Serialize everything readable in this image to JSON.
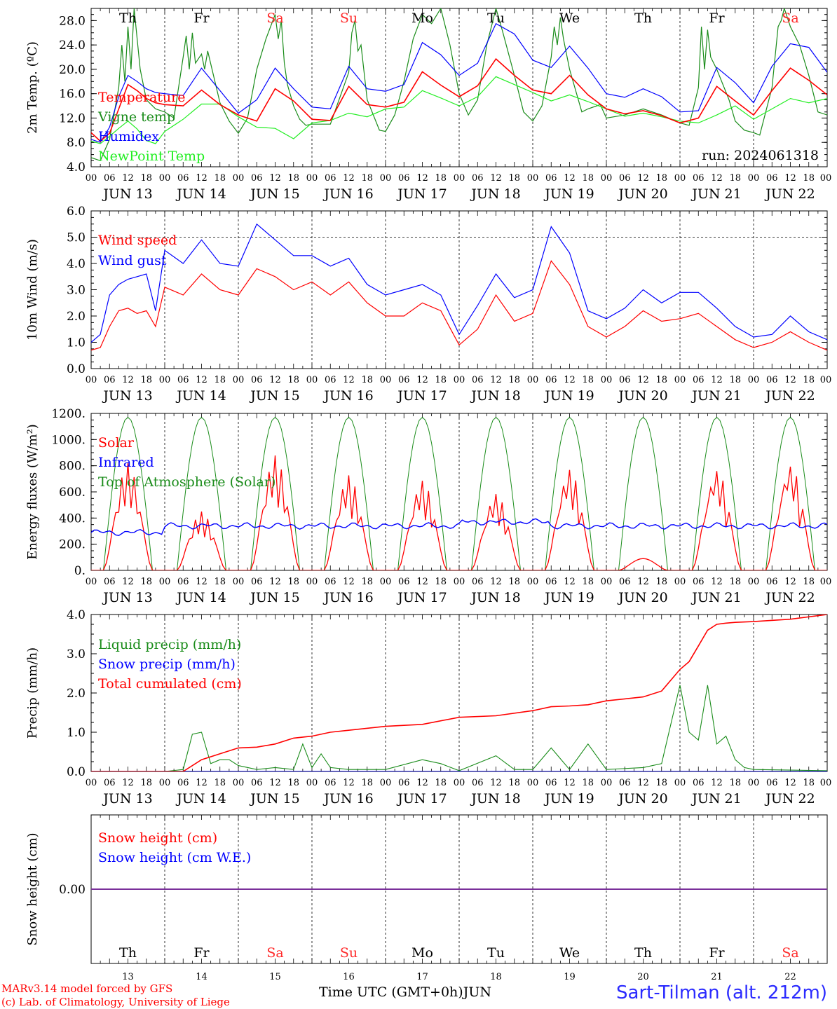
{
  "run_label": "run: 2024061318",
  "footer": {
    "model": "MARv3.14 model forced by GFS",
    "credit": "(c) Lab. of Climatology, University of Liege",
    "xlabel": "Time UTC (GMT+0h)",
    "month": "JUN",
    "station": "Sart-Tilman (alt. 212m)"
  },
  "days": {
    "weekday": [
      "Th",
      "Fr",
      "Sa",
      "Su",
      "Mo",
      "Tu",
      "We",
      "Th",
      "Fr",
      "Sa"
    ],
    "weekend": [
      false,
      false,
      true,
      true,
      false,
      false,
      false,
      false,
      false,
      true
    ],
    "dates": [
      "JUN 13",
      "JUN 14",
      "JUN 15",
      "JUN 16",
      "JUN 17",
      "JUN 18",
      "JUN 19",
      "JUN 20",
      "JUN 21",
      "JUN 22"
    ],
    "day_numbers": [
      "13",
      "14",
      "15",
      "16",
      "17",
      "18",
      "19",
      "20",
      "21",
      "22"
    ],
    "hour_ticks": [
      "00",
      "06",
      "12",
      "18"
    ],
    "final_tick": "00"
  },
  "colors": {
    "red": "#ff0000",
    "green": "#1a8c1a",
    "blue": "#0000ff",
    "lightgreen": "#22ee22",
    "purple": "#7a2f9a",
    "weekend": "#ff2a2a"
  },
  "chart_data": [
    {
      "type": "line",
      "ylabel": "2m Temp. (ºC)",
      "ylim": [
        4,
        30
      ],
      "yticks": [
        "4.0",
        "8.0",
        "12.0",
        "16.0",
        "20.0",
        "24.0",
        "28.0"
      ],
      "x_unit": "hours since JUN 13 00 UTC",
      "legend_placement": "left",
      "series": [
        {
          "name": "Temperature",
          "color": "red",
          "x": [
            0,
            3,
            6,
            9,
            12,
            15,
            18,
            21,
            24,
            30,
            36,
            42,
            48,
            54,
            60,
            66,
            72,
            78,
            84,
            90,
            96,
            102,
            108,
            114,
            120,
            126,
            132,
            138,
            144,
            150,
            156,
            162,
            168,
            174,
            180,
            186,
            192,
            198,
            204,
            210,
            216,
            222,
            228,
            234,
            240
          ],
          "y": [
            9.6,
            8.2,
            9.5,
            13.5,
            17.5,
            16.5,
            15.2,
            14.5,
            14.2,
            14,
            16.6,
            14.2,
            12.5,
            11.5,
            16.8,
            14.8,
            11.8,
            11.6,
            17.2,
            14.2,
            13.8,
            14.6,
            19.6,
            17.4,
            15.5,
            17.3,
            21.7,
            19,
            16.6,
            16,
            19,
            15.8,
            13.5,
            12.7,
            13.2,
            12.4,
            11.2,
            12,
            17.2,
            14.8,
            12.5,
            16.5,
            20.2,
            18.2,
            15.8
          ]
        },
        {
          "name": "Vigne temp",
          "color": "green",
          "x": [
            0,
            3,
            6,
            9,
            10,
            11,
            12,
            13,
            14,
            16,
            18,
            21,
            24,
            27,
            30,
            31,
            32,
            33,
            34,
            36,
            37,
            38,
            42,
            45,
            48,
            51,
            54,
            57,
            60,
            61,
            62,
            63,
            64,
            66,
            68,
            70,
            72,
            78,
            84,
            85,
            86,
            87,
            88,
            90,
            94,
            96,
            99,
            102,
            105,
            108,
            111,
            114,
            117,
            120,
            123,
            126,
            129,
            132,
            134,
            138,
            141,
            144,
            147,
            150,
            151,
            152,
            153,
            154,
            156,
            160,
            162,
            166,
            168,
            174,
            180,
            186,
            192,
            195,
            198,
            199,
            200,
            201,
            202,
            204,
            208,
            210,
            213,
            216,
            218,
            222,
            224,
            225,
            226,
            228,
            231,
            234,
            237,
            240
          ],
          "y": [
            5.5,
            5,
            8.5,
            17,
            24,
            18,
            27,
            20,
            30,
            20,
            15,
            13.5,
            13,
            12,
            22,
            25.5,
            20,
            26,
            21,
            22.5,
            20,
            23,
            14.5,
            11.5,
            9.5,
            12,
            20,
            25,
            29,
            25,
            28,
            21,
            17.5,
            14,
            11.8,
            10.8,
            11,
            11,
            19.5,
            26,
            28,
            23,
            24,
            15,
            10,
            9.8,
            12.5,
            18,
            25,
            29,
            27.5,
            30,
            24,
            16,
            12.5,
            15,
            24,
            30,
            26.5,
            19,
            13,
            11.5,
            14,
            22,
            27,
            24,
            28.5,
            25,
            20,
            13,
            13.5,
            14.2,
            12,
            12.5,
            13.5,
            12.5,
            11.2,
            10.8,
            17,
            27,
            20,
            26.5,
            22,
            20,
            15,
            11.5,
            10,
            9.6,
            9.2,
            17,
            27,
            28,
            30,
            27,
            24,
            19,
            13,
            12.5
          ]
        },
        {
          "name": "Humidex",
          "color": "blue",
          "x": [
            0,
            3,
            6,
            9,
            12,
            15,
            18,
            21,
            24,
            30,
            36,
            42,
            48,
            54,
            60,
            66,
            72,
            78,
            84,
            90,
            96,
            102,
            108,
            114,
            120,
            126,
            132,
            138,
            144,
            150,
            156,
            162,
            168,
            174,
            180,
            186,
            192,
            198,
            204,
            210,
            216,
            222,
            228,
            234,
            240
          ],
          "y": [
            8.5,
            8,
            10.5,
            15.5,
            19,
            18,
            16.8,
            16.2,
            16,
            15.7,
            20.2,
            16.5,
            12.8,
            15,
            20.2,
            16.8,
            13.8,
            13.5,
            20.5,
            16.8,
            16.4,
            17.5,
            24.4,
            22.4,
            19,
            21,
            27.5,
            25.8,
            21.5,
            20.3,
            23.8,
            20.2,
            16,
            15.4,
            16.8,
            15.5,
            13,
            13.2,
            20.3,
            17.8,
            14.5,
            20.5,
            24.2,
            23.6,
            19.5
          ]
        },
        {
          "name": "NewPoint Temp",
          "color": "lightgreen",
          "x": [
            0,
            3,
            6,
            9,
            12,
            15,
            18,
            21,
            24,
            30,
            36,
            42,
            48,
            54,
            60,
            66,
            72,
            78,
            84,
            90,
            96,
            102,
            108,
            114,
            120,
            126,
            132,
            138,
            144,
            150,
            156,
            162,
            168,
            174,
            180,
            186,
            192,
            198,
            204,
            210,
            216,
            222,
            228,
            234,
            240
          ],
          "y": [
            8.2,
            7.8,
            9,
            10.3,
            11.5,
            10.2,
            8.3,
            7.8,
            9.8,
            11.8,
            14.3,
            14.3,
            12.2,
            10.5,
            10.3,
            8.6,
            11.2,
            11.6,
            12.8,
            12.2,
            13.5,
            13.8,
            16.5,
            15.3,
            14,
            15.5,
            18.8,
            17.5,
            16.2,
            14.8,
            15.8,
            14.7,
            13.5,
            12.3,
            12.8,
            12.2,
            11.5,
            11.2,
            12.5,
            14,
            11.8,
            13.5,
            15.2,
            14.5,
            15.2
          ]
        }
      ]
    },
    {
      "type": "line",
      "ylabel": "10m Wind (m/s)",
      "ylim": [
        0,
        6
      ],
      "yticks": [
        "0.0",
        "1.0",
        "2.0",
        "3.0",
        "4.0",
        "5.0",
        "6.0"
      ],
      "x_unit": "hours since JUN 13 00 UTC",
      "reference_line": 5,
      "legend_placement": "left",
      "series": [
        {
          "name": "Wind speed",
          "color": "red",
          "x": [
            0,
            3,
            6,
            9,
            12,
            15,
            18,
            21,
            24,
            30,
            36,
            42,
            48,
            54,
            60,
            66,
            72,
            78,
            84,
            90,
            96,
            102,
            108,
            114,
            120,
            126,
            132,
            138,
            144,
            150,
            156,
            162,
            168,
            174,
            180,
            186,
            192,
            198,
            204,
            210,
            216,
            222,
            228,
            234,
            240
          ],
          "y": [
            0.7,
            0.8,
            1.6,
            2.2,
            2.3,
            2.1,
            2.2,
            1.6,
            3.1,
            2.8,
            3.6,
            3.0,
            2.8,
            3.8,
            3.5,
            3.0,
            3.3,
            2.8,
            3.3,
            2.5,
            2.0,
            2.0,
            2.5,
            2.2,
            0.9,
            1.5,
            2.8,
            1.8,
            2.1,
            4.1,
            3.2,
            1.6,
            1.2,
            1.6,
            2.2,
            1.8,
            1.9,
            2.1,
            1.6,
            1.1,
            0.8,
            1.0,
            1.4,
            1.0,
            0.7
          ]
        },
        {
          "name": "Wind gust",
          "color": "blue",
          "x": [
            0,
            3,
            6,
            9,
            12,
            15,
            18,
            21,
            24,
            30,
            36,
            42,
            48,
            54,
            60,
            66,
            72,
            78,
            84,
            90,
            96,
            102,
            108,
            114,
            120,
            126,
            132,
            138,
            144,
            150,
            156,
            162,
            168,
            174,
            180,
            186,
            192,
            198,
            204,
            210,
            216,
            222,
            228,
            234,
            240
          ],
          "y": [
            1.0,
            1.3,
            2.8,
            3.2,
            3.4,
            3.5,
            3.6,
            2.2,
            4.5,
            4.0,
            4.9,
            4.0,
            3.9,
            5.5,
            4.9,
            4.3,
            4.3,
            3.9,
            4.2,
            3.2,
            2.8,
            3.0,
            3.2,
            2.8,
            1.3,
            2.4,
            3.6,
            2.7,
            3.0,
            5.4,
            4.4,
            2.2,
            1.9,
            2.3,
            3.0,
            2.5,
            2.9,
            2.9,
            2.3,
            1.6,
            1.2,
            1.3,
            2.0,
            1.4,
            1.1
          ]
        }
      ]
    },
    {
      "type": "line",
      "ylabel": "Energy fluxes (W/m²)",
      "ylim": [
        0,
        1200
      ],
      "yticks": [
        "0.",
        "200.",
        "400.",
        "600.",
        "800.",
        "1000.",
        "1200."
      ],
      "x_unit": "hours since JUN 13 00 UTC",
      "legend_placement": "left",
      "toa_peak": 1170,
      "infrared_level": 340,
      "solar_daily_peak": [
        820,
        450,
        880,
        730,
        690,
        590,
        780,
        90,
        780,
        820
      ],
      "series": [
        {
          "name": "Solar",
          "color": "red"
        },
        {
          "name": "Infrared",
          "color": "blue"
        },
        {
          "name": "Top of Atmosphere (Solar)",
          "color": "green"
        }
      ]
    },
    {
      "type": "line",
      "ylabel": "Precip (mm/h)",
      "ylim": [
        0,
        4
      ],
      "yticks": [
        "0.0",
        "1.0",
        "2.0",
        "3.0",
        "4.0"
      ],
      "x_unit": "hours since JUN 13 00 UTC",
      "legend_placement": "left",
      "series": [
        {
          "name": "Liquid precip (mm/h)",
          "color": "green",
          "x": [
            0,
            24,
            30,
            33,
            36,
            39,
            42,
            45,
            48,
            54,
            60,
            66,
            69,
            72,
            75,
            78,
            84,
            96,
            108,
            114,
            120,
            132,
            138,
            144,
            150,
            156,
            162,
            168,
            180,
            186,
            192,
            195,
            198,
            201,
            204,
            207,
            210,
            213,
            216,
            240
          ],
          "y": [
            0,
            0,
            0.05,
            0.95,
            1.0,
            0.2,
            0.3,
            0.3,
            0.15,
            0.05,
            0.1,
            0.05,
            0.7,
            0.1,
            0.45,
            0.1,
            0.05,
            0.05,
            0.3,
            0.2,
            0.02,
            0.4,
            0.05,
            0.05,
            0.6,
            0.05,
            0.7,
            0.05,
            0.1,
            0.2,
            2.2,
            1.0,
            0.8,
            2.2,
            0.7,
            0.9,
            0.3,
            0.1,
            0.05,
            0.02
          ]
        },
        {
          "name": "Snow precip (mm/h)",
          "color": "blue",
          "x": [
            0,
            240
          ],
          "y": [
            0,
            0
          ]
        },
        {
          "name": "Total cumulated (cm)",
          "color": "red",
          "x": [
            0,
            30,
            36,
            42,
            48,
            54,
            60,
            66,
            72,
            78,
            84,
            96,
            108,
            120,
            132,
            144,
            150,
            156,
            162,
            168,
            180,
            186,
            192,
            195,
            198,
            201,
            204,
            207,
            210,
            216,
            228,
            240
          ],
          "y": [
            0,
            0,
            0.3,
            0.45,
            0.6,
            0.62,
            0.7,
            0.85,
            0.9,
            1.0,
            1.05,
            1.15,
            1.2,
            1.38,
            1.42,
            1.55,
            1.65,
            1.67,
            1.7,
            1.8,
            1.9,
            2.05,
            2.6,
            2.8,
            3.2,
            3.6,
            3.75,
            3.78,
            3.8,
            3.82,
            3.88,
            4.0
          ]
        }
      ]
    },
    {
      "type": "line",
      "ylabel": "Snow height (cm)",
      "ytick_label": "0.00",
      "x_unit": "hours since JUN 13 00 UTC",
      "legend_placement": "left",
      "series": [
        {
          "name": "Snow height (cm)",
          "color": "red",
          "x": [
            0,
            240
          ],
          "y": [
            0,
            0
          ]
        },
        {
          "name": "Snow height (cm W.E.)",
          "color": "blue",
          "x": [
            0,
            240
          ],
          "y": [
            0,
            0
          ]
        }
      ]
    }
  ]
}
